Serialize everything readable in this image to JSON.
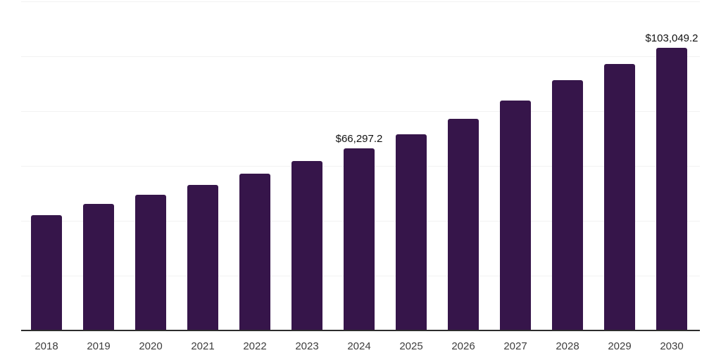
{
  "chart_data": {
    "type": "bar",
    "title": "",
    "xlabel": "",
    "ylabel": "",
    "categories": [
      "2018",
      "2019",
      "2020",
      "2021",
      "2022",
      "2023",
      "2024",
      "2025",
      "2026",
      "2027",
      "2028",
      "2029",
      "2030"
    ],
    "values": [
      42100,
      46200,
      49600,
      53200,
      57300,
      61800,
      66297.2,
      71500,
      77100,
      83900,
      91300,
      97300,
      103049.2
    ],
    "ylim": [
      0,
      120000
    ],
    "gridline_step": 20000,
    "grid": true,
    "legend": "none",
    "bar_color": "#36154a",
    "axis_color": "#2d2d2d",
    "gridline_color": "#f2f2f2",
    "tick_label_color": "#3d3d3d",
    "data_label_color": "#111111",
    "data_labels": [
      {
        "category": "2024",
        "text": "$66,297.2"
      },
      {
        "category": "2030",
        "text": "$103,049.2"
      }
    ]
  }
}
